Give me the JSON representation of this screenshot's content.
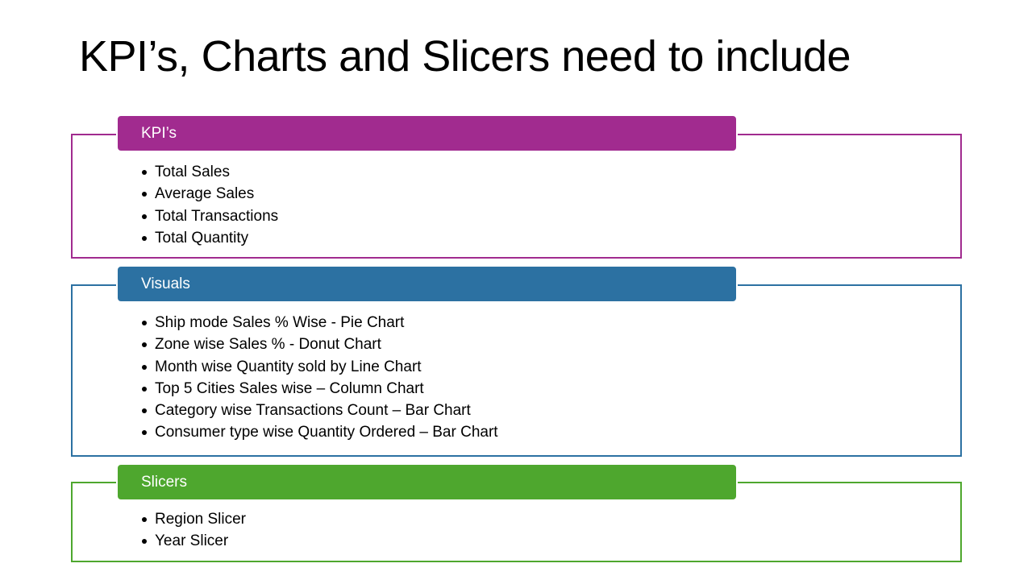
{
  "slide": {
    "title": "KPI’s, Charts and Slicers need to include"
  },
  "sections": [
    {
      "header": "KPI’s",
      "color": "#A12B8F",
      "items": [
        "Total Sales",
        "Average Sales",
        "Total Transactions",
        "Total Quantity"
      ]
    },
    {
      "header": "Visuals",
      "color": "#2C71A2",
      "items": [
        "Ship mode Sales % Wise  - Pie Chart",
        "Zone wise Sales % - Donut Chart",
        "Month wise Quantity sold by Line Chart",
        "Top 5 Cities Sales wise – Column Chart",
        "Category wise Transactions Count – Bar Chart",
        "Consumer type wise Quantity Ordered – Bar Chart"
      ]
    },
    {
      "header": "Slicers",
      "color": "#4EA72E",
      "items": [
        "Region Slicer",
        "Year Slicer"
      ]
    }
  ]
}
